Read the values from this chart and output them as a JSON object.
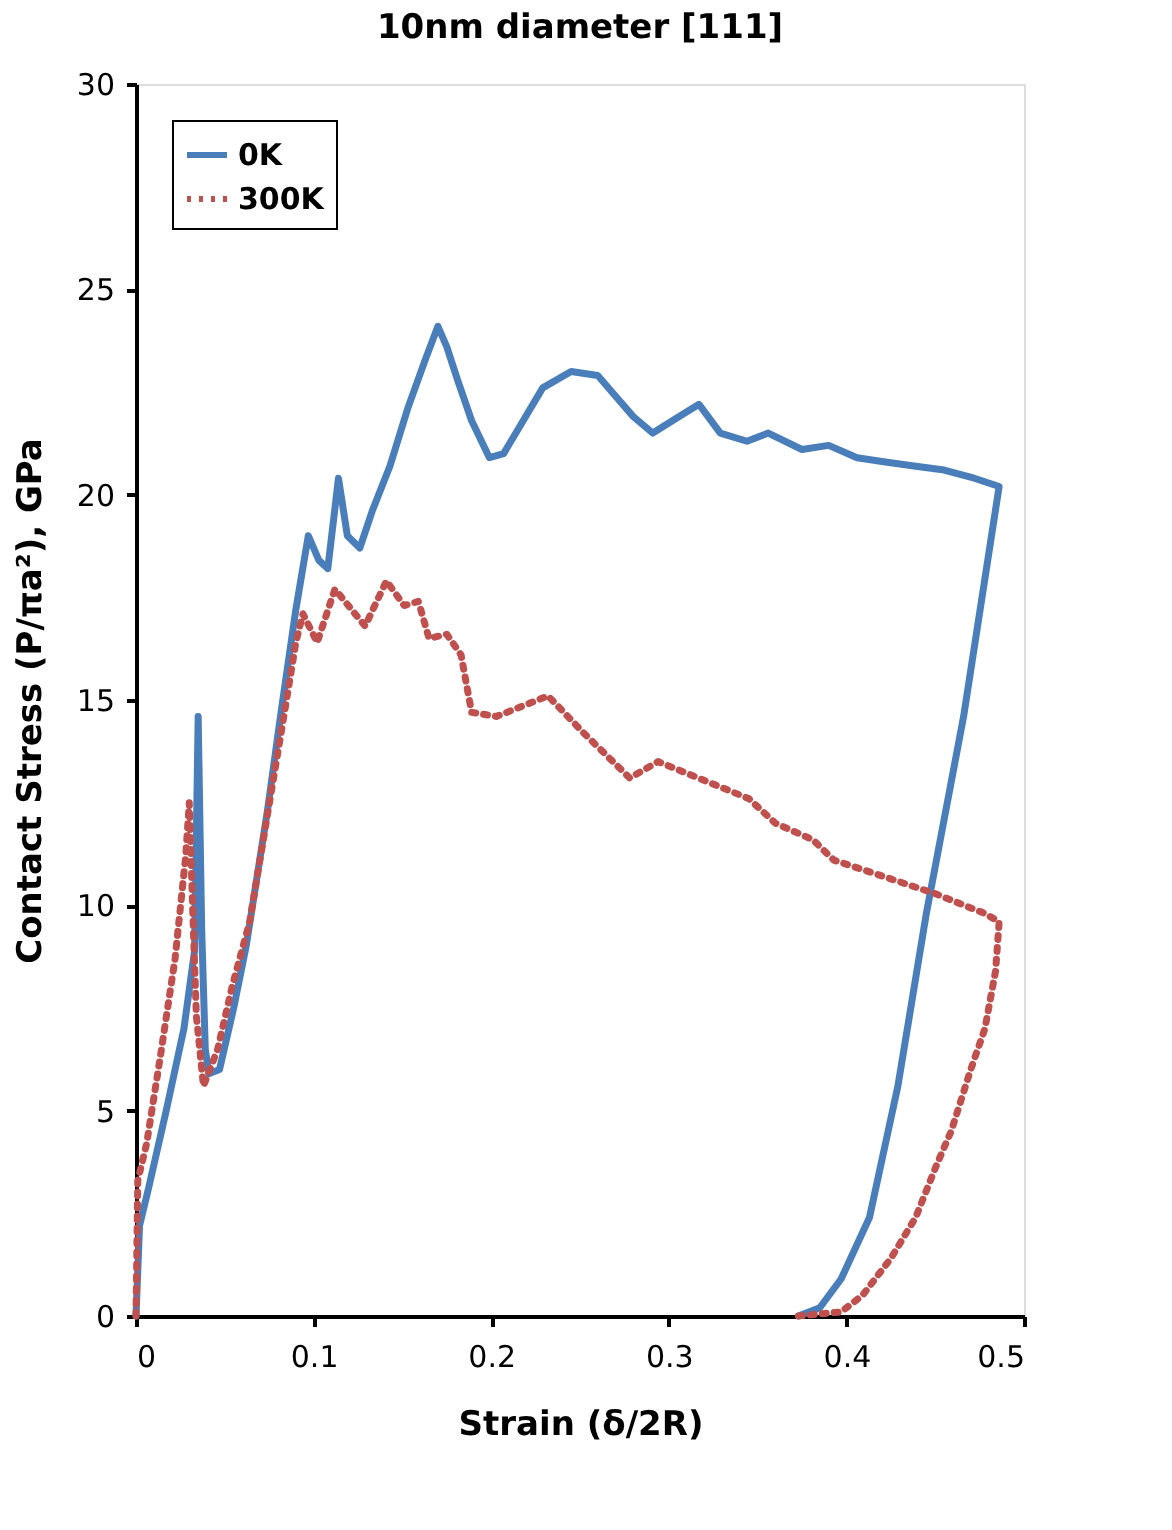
{
  "chart_data": {
    "type": "line",
    "title": "10nm diameter [111]",
    "xlabel": "Strain (δ/2R)",
    "ylabel": "Contact Stress (P/πa²), GPa",
    "xlim": [
      0,
      0.5
    ],
    "xticks": [
      0,
      0.1,
      0.2,
      0.3,
      0.4,
      0.5
    ],
    "ylim": [
      0,
      30
    ],
    "yticks": [
      0,
      5,
      10,
      15,
      20,
      25,
      30
    ],
    "grid": false,
    "legend": "top left",
    "marker": "none",
    "series": [
      {
        "name": "0K",
        "color": "#4a7ebb",
        "line_style": "solid",
        "x": [
          0,
          0.002,
          0.007,
          0.017,
          0.027,
          0.033,
          0.035,
          0.037,
          0.039,
          0.041,
          0.047,
          0.055,
          0.062,
          0.066,
          0.074,
          0.082,
          0.09,
          0.097,
          0.103,
          0.108,
          0.114,
          0.119,
          0.126,
          0.133,
          0.143,
          0.153,
          0.163,
          0.17,
          0.175,
          0.181,
          0.189,
          0.199,
          0.207,
          0.218,
          0.229,
          0.245,
          0.26,
          0.268,
          0.28,
          0.291,
          0.302,
          0.317,
          0.329,
          0.344,
          0.356,
          0.375,
          0.39,
          0.406,
          0.421,
          0.438,
          0.455,
          0.472,
          0.486,
          0.466,
          0.445,
          0.429,
          0.413,
          0.397,
          0.385,
          0.373
        ],
        "values": [
          0,
          2.2,
          3.1,
          5.0,
          7.0,
          8.9,
          14.6,
          9.4,
          6.5,
          5.9,
          6.0,
          7.5,
          9.0,
          10.1,
          12.3,
          14.8,
          17.2,
          19.0,
          18.4,
          18.2,
          20.4,
          19.0,
          18.7,
          19.6,
          20.7,
          22.1,
          23.3,
          24.1,
          23.6,
          22.8,
          21.8,
          20.9,
          21.0,
          21.8,
          22.6,
          23.0,
          22.9,
          22.5,
          21.9,
          21.5,
          21.8,
          22.2,
          21.5,
          21.3,
          21.5,
          21.1,
          21.2,
          20.9,
          20.8,
          20.7,
          20.6,
          20.4,
          20.2,
          14.6,
          9.8,
          5.6,
          2.4,
          0.9,
          0.2,
          0
        ]
      },
      {
        "name": "300K",
        "color": "#c0504d",
        "line_style": "dotted",
        "x": [
          0,
          0.001,
          0.006,
          0.014,
          0.022,
          0.028,
          0.03,
          0.032,
          0.034,
          0.038,
          0.046,
          0.054,
          0.064,
          0.074,
          0.084,
          0.09,
          0.094,
          0.102,
          0.112,
          0.129,
          0.141,
          0.151,
          0.159,
          0.165,
          0.175,
          0.183,
          0.189,
          0.203,
          0.232,
          0.252,
          0.278,
          0.294,
          0.328,
          0.345,
          0.36,
          0.381,
          0.393,
          0.421,
          0.449,
          0.478,
          0.486,
          0.484,
          0.478,
          0.47,
          0.459,
          0.451,
          0.439,
          0.425,
          0.409,
          0.397,
          0.373
        ],
        "values": [
          0,
          3.3,
          4.2,
          6.4,
          8.7,
          11.2,
          12.5,
          9.8,
          7.3,
          5.6,
          6.5,
          8.0,
          9.6,
          12.2,
          14.8,
          16.4,
          17.1,
          16.4,
          17.7,
          16.8,
          17.9,
          17.3,
          17.4,
          16.5,
          16.6,
          16.1,
          14.7,
          14.6,
          15.1,
          14.2,
          13.1,
          13.5,
          12.9,
          12.6,
          12.0,
          11.6,
          11.1,
          10.7,
          10.3,
          9.8,
          9.6,
          8.4,
          7.0,
          6.0,
          4.5,
          3.7,
          2.4,
          1.4,
          0.5,
          0.1,
          0
        ]
      }
    ]
  }
}
